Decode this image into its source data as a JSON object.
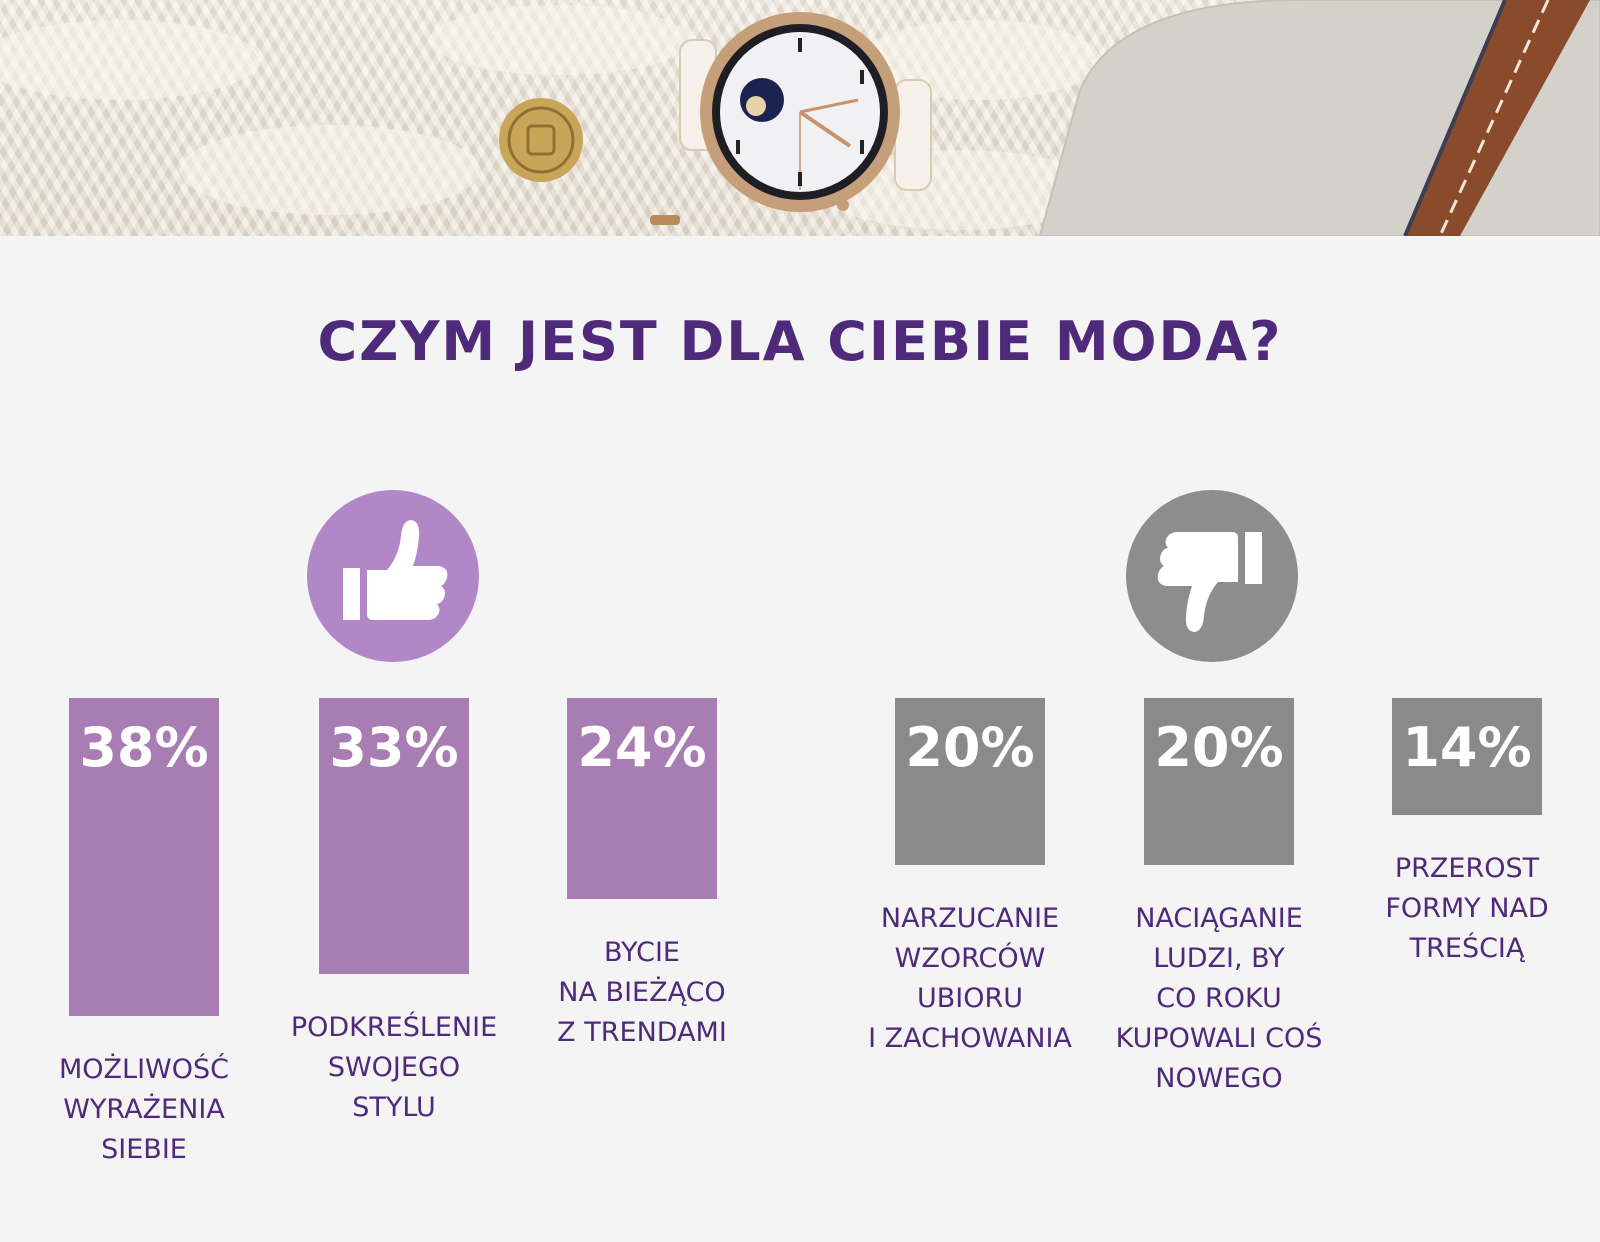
{
  "colors": {
    "background": "#f4f4f4",
    "title": "#4f2a7a",
    "positive_bar": "#a77db3",
    "negative_bar": "#8a8a8a",
    "positive_badge": "#b187c7",
    "negative_badge": "#8d8d8d",
    "label_text": "#4f2a7a"
  },
  "icons": {
    "positive": "thumbs-up-icon",
    "negative": "thumbs-down-icon"
  },
  "chart_data": {
    "type": "bar",
    "title": "CZYM JEST DLA CIEBIE MODA?",
    "categories": [
      "MOŻLIWOŚĆ\nWYRAŻENIA\nSIEBIE",
      "PODKREŚLENIE\nSWOJEGO\nSTYLU",
      "BYCIE\nNA BIEŻĄCO\nZ TRENDAMI",
      "NARZUCANIE\nWZORCÓW\nUBIORU\nI ZACHOWANIA",
      "NACIĄGANIE\nLUDZI, BY\nCO ROKU\nKUPOWALI COŚ\nNOWEGO",
      "PRZEROST\nFORMY NAD\nTREŚCIĄ"
    ],
    "values": [
      38,
      33,
      24,
      20,
      20,
      14
    ],
    "value_labels": [
      "38%",
      "33%",
      "24%",
      "20%",
      "20%",
      "14%"
    ],
    "groups": [
      "positive",
      "positive",
      "positive",
      "negative",
      "negative",
      "negative"
    ],
    "unit": "%",
    "xlabel": "",
    "ylabel": "",
    "grid": false,
    "ylim": [
      0,
      38
    ]
  }
}
